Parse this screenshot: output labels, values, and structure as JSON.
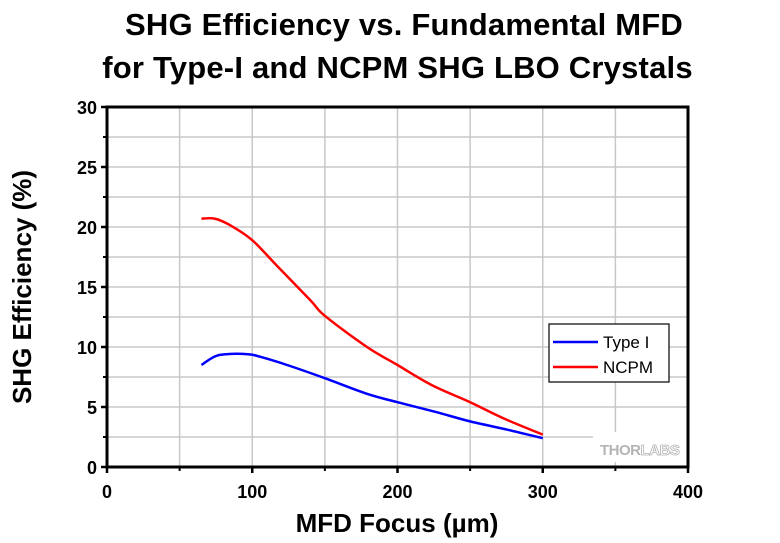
{
  "chart_data": {
    "type": "line",
    "title": "SHG Efficiency vs. Fundamental MFD",
    "subtitle": "for Type-I and NCPM SHG LBO Crystals",
    "xlabel": "MFD Focus (µm)",
    "ylabel": "SHG Efficiency (%)",
    "xlim": [
      0,
      400
    ],
    "ylim": [
      0,
      30
    ],
    "x_ticks": [
      0,
      100,
      200,
      300,
      400
    ],
    "y_ticks": [
      0,
      5,
      10,
      15,
      20,
      25,
      30
    ],
    "x_minor_step": 50,
    "y_minor_step": 2.5,
    "grid": true,
    "legend_position": "right",
    "series": [
      {
        "name": "Type I",
        "color": "#0000ff",
        "x": [
          65,
          74,
          82,
          97,
          105,
          124,
          150,
          179,
          200,
          226,
          250,
          276,
          300
        ],
        "y": [
          8.5,
          9.2,
          9.4,
          9.4,
          9.2,
          8.5,
          7.4,
          6.1,
          5.4,
          4.6,
          3.8,
          3.1,
          2.4
        ]
      },
      {
        "name": "NCPM",
        "color": "#ff0000",
        "x": [
          65,
          74,
          84,
          100,
          116,
          140,
          150,
          179,
          200,
          224,
          250,
          274,
          300
        ],
        "y": [
          20.7,
          20.7,
          20.2,
          18.9,
          16.9,
          13.9,
          12.6,
          10.0,
          8.5,
          6.8,
          5.4,
          4.0,
          2.7
        ]
      }
    ],
    "watermark": {
      "solid": "THOR",
      "outline": "LABS"
    }
  }
}
